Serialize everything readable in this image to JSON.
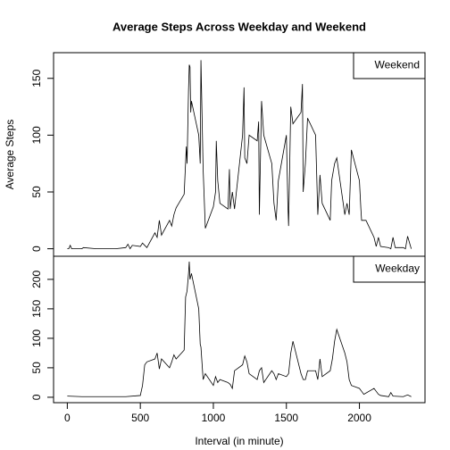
{
  "chart_data": [
    {
      "type": "line",
      "title": "Average Steps Across Weekday and Weekend",
      "ylabel": "Average Steps",
      "xlim": [
        -94,
        2449
      ],
      "ylim": [
        -6.6,
        172.6
      ],
      "yticks": [
        0,
        50,
        100,
        150
      ],
      "legend": "topright",
      "series": [
        {
          "name": "Weekend",
          "color": "#000000",
          "x": [
            0,
            10,
            20,
            30,
            100,
            110,
            200,
            300,
            330,
            400,
            415,
            430,
            445,
            500,
            515,
            530,
            545,
            600,
            615,
            630,
            645,
            700,
            715,
            730,
            745,
            800,
            815,
            820,
            830,
            835,
            840,
            845,
            850,
            900,
            910,
            915,
            930,
            945,
            1000,
            1015,
            1020,
            1030,
            1045,
            1100,
            1110,
            1115,
            1130,
            1145,
            1200,
            1210,
            1215,
            1230,
            1245,
            1300,
            1310,
            1315,
            1330,
            1345,
            1400,
            1415,
            1430,
            1445,
            1500,
            1510,
            1515,
            1530,
            1545,
            1600,
            1610,
            1615,
            1630,
            1645,
            1700,
            1715,
            1730,
            1745,
            1800,
            1810,
            1830,
            1845,
            1900,
            1915,
            1930,
            1945,
            2000,
            2010,
            2015,
            2030,
            2045,
            2100,
            2115,
            2130,
            2145,
            2200,
            2215,
            2230,
            2245,
            2300,
            2315,
            2330,
            2355
          ],
          "values": [
            0,
            0,
            3,
            0,
            0,
            1,
            0,
            0,
            0,
            1,
            4,
            0,
            3,
            2,
            5,
            3,
            1,
            14,
            10,
            25,
            12,
            25,
            20,
            30,
            36,
            48,
            90,
            75,
            140,
            162,
            160,
            120,
            130,
            100,
            75,
            166,
            70,
            18,
            37,
            50,
            95,
            60,
            40,
            35,
            70,
            35,
            50,
            35,
            100,
            142,
            80,
            75,
            100,
            95,
            112,
            30,
            130,
            100,
            75,
            40,
            25,
            60,
            100,
            40,
            20,
            125,
            110,
            120,
            145,
            50,
            75,
            115,
            100,
            30,
            65,
            40,
            25,
            60,
            75,
            80,
            30,
            40,
            30,
            87,
            60,
            35,
            25,
            25,
            25,
            10,
            2,
            10,
            2,
            1,
            0,
            10,
            1,
            1,
            0,
            11,
            0
          ]
        }
      ]
    },
    {
      "type": "line",
      "xlabel": "Interval (in minute)",
      "xlim": [
        -94,
        2449
      ],
      "xticks": [
        0,
        500,
        1000,
        1500,
        2000
      ],
      "ylim": [
        -9.2,
        239.2
      ],
      "yticks": [
        0,
        50,
        100,
        150,
        200
      ],
      "legend": "topright",
      "series": [
        {
          "name": "Weekday",
          "color": "#000000",
          "x": [
            0,
            100,
            200,
            300,
            400,
            500,
            515,
            530,
            545,
            600,
            615,
            630,
            645,
            700,
            715,
            730,
            745,
            800,
            810,
            820,
            830,
            835,
            840,
            845,
            850,
            900,
            910,
            915,
            930,
            945,
            1000,
            1015,
            1030,
            1045,
            1100,
            1115,
            1130,
            1145,
            1200,
            1215,
            1230,
            1245,
            1300,
            1315,
            1330,
            1345,
            1400,
            1415,
            1430,
            1445,
            1500,
            1515,
            1530,
            1545,
            1600,
            1615,
            1630,
            1645,
            1700,
            1715,
            1730,
            1745,
            1800,
            1815,
            1830,
            1845,
            1900,
            1915,
            1930,
            1945,
            2000,
            2015,
            2030,
            2100,
            2115,
            2130,
            2145,
            2200,
            2215,
            2230,
            2300,
            2330,
            2355
          ],
          "values": [
            2,
            1,
            1,
            1,
            1,
            3,
            20,
            55,
            60,
            65,
            75,
            48,
            65,
            50,
            60,
            72,
            65,
            80,
            170,
            180,
            210,
            230,
            200,
            205,
            210,
            150,
            90,
            85,
            30,
            40,
            20,
            35,
            25,
            30,
            25,
            22,
            15,
            45,
            55,
            70,
            60,
            40,
            30,
            45,
            50,
            25,
            45,
            40,
            30,
            40,
            35,
            40,
            75,
            95,
            40,
            30,
            30,
            45,
            45,
            30,
            65,
            35,
            45,
            65,
            95,
            115,
            75,
            60,
            30,
            20,
            15,
            10,
            5,
            15,
            10,
            5,
            3,
            1,
            8,
            2,
            1,
            4,
            1
          ]
        }
      ]
    }
  ]
}
